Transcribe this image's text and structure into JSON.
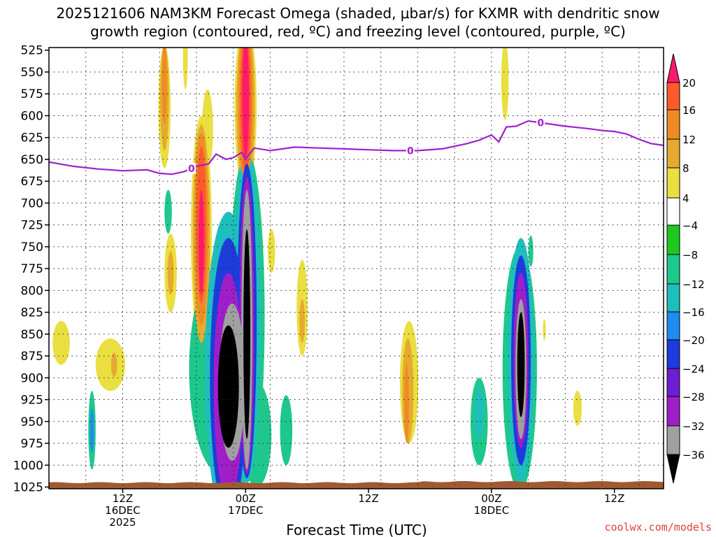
{
  "chart_data": {
    "type": "heatmap",
    "title_line1": "2025121606 NAM3KM Forecast Omega (shaded, μbar/s) for KXMR with dendritic snow",
    "title_line2": "growth region (contoured, red, ºC) and freezing level (contoured, purple, ºC)",
    "xlabel": "Forecast Time (UTC)",
    "ylabel": "",
    "y_axis_ticks": [
      525,
      550,
      575,
      600,
      625,
      650,
      675,
      700,
      725,
      750,
      775,
      800,
      825,
      850,
      875,
      900,
      925,
      950,
      975,
      1000,
      1025
    ],
    "ylim": [
      1027,
      522
    ],
    "xlim_hours": [
      6,
      56
    ],
    "x_ticks": [
      {
        "hour": 12,
        "line1": "12Z",
        "line2": "16DEC",
        "line3": "2025"
      },
      {
        "hour": 22,
        "line1": "00Z",
        "line2": "17DEC",
        "line3": ""
      },
      {
        "hour": 32,
        "line1": "12Z",
        "line2": "",
        "line3": ""
      },
      {
        "hour": 42,
        "line1": "00Z",
        "line2": "18DEC",
        "line3": ""
      },
      {
        "hour": 52,
        "line1": "12Z",
        "line2": "",
        "line3": ""
      }
    ],
    "colorbar": {
      "labels": [
        "20",
        "16",
        "12",
        "8",
        "4",
        "−4",
        "−8",
        "−12",
        "−16",
        "−20",
        "−24",
        "−28",
        "−32",
        "−36"
      ],
      "colors": [
        "#ff1a6e",
        "#ff5a2a",
        "#f08a24",
        "#e6aa30",
        "#eadf40",
        "#ffffff",
        "#1ec81e",
        "#1ec88c",
        "#1ebebe",
        "#1e8cf0",
        "#1e3cdc",
        "#6e1ed2",
        "#a01ec8",
        "#a0a0a0",
        "#000000"
      ]
    },
    "freezing_level": {
      "label": "0",
      "color": "#a020d0",
      "points": [
        [
          6,
          653
        ],
        [
          8,
          658
        ],
        [
          10,
          661
        ],
        [
          12,
          663
        ],
        [
          14,
          662
        ],
        [
          15,
          666
        ],
        [
          16,
          667
        ],
        [
          17,
          664
        ],
        [
          18,
          658
        ],
        [
          19,
          655
        ],
        [
          19.6,
          644
        ],
        [
          20.4,
          650
        ],
        [
          21,
          648
        ],
        [
          21.7,
          642
        ],
        [
          22,
          650
        ],
        [
          22.3,
          644
        ],
        [
          22.7,
          637
        ],
        [
          24,
          640
        ],
        [
          26,
          636
        ],
        [
          28,
          637
        ],
        [
          30,
          638
        ],
        [
          32,
          639
        ],
        [
          34,
          640
        ],
        [
          36,
          640
        ],
        [
          38,
          638
        ],
        [
          40,
          632
        ],
        [
          41,
          628
        ],
        [
          42,
          622
        ],
        [
          42.6,
          630
        ],
        [
          43.2,
          613
        ],
        [
          44,
          612
        ],
        [
          45,
          606
        ],
        [
          46,
          608
        ],
        [
          48,
          612
        ],
        [
          50,
          615
        ],
        [
          51,
          617
        ],
        [
          52,
          618
        ],
        [
          53,
          621
        ],
        [
          54,
          627
        ],
        [
          55,
          632
        ],
        [
          56,
          634
        ]
      ],
      "label_hours": [
        17.6,
        35.4,
        46.0
      ]
    },
    "ground_pressure_hpa": 1020,
    "omega_features": [
      {
        "t": 20.6,
        "tw": 0.85,
        "p": 910,
        "ph": 70,
        "v": -37
      },
      {
        "t": 20.9,
        "tw": 1.05,
        "p": 905,
        "ph": 90,
        "v": -33
      },
      {
        "t": 20.6,
        "tw": 1.2,
        "p": 910,
        "ph": 130,
        "v": -29
      },
      {
        "t": 20.6,
        "tw": 1.5,
        "p": 900,
        "ph": 160,
        "v": -21
      },
      {
        "t": 20.6,
        "tw": 1.9,
        "p": 890,
        "ph": 180,
        "v": -13
      },
      {
        "t": 20.0,
        "tw": 2.6,
        "p": 890,
        "ph": 120,
        "v": -9
      },
      {
        "t": 22.1,
        "tw": 0.28,
        "p": 850,
        "ph": 120,
        "v": -37
      },
      {
        "t": 22.1,
        "tw": 0.45,
        "p": 845,
        "ph": 160,
        "v": -33
      },
      {
        "t": 22.1,
        "tw": 0.6,
        "p": 840,
        "ph": 170,
        "v": -29
      },
      {
        "t": 22.1,
        "tw": 0.8,
        "p": 835,
        "ph": 180,
        "v": -21
      },
      {
        "t": 22.1,
        "tw": 1.1,
        "p": 830,
        "ph": 190,
        "v": -13
      },
      {
        "t": 22.1,
        "tw": 1.45,
        "p": 830,
        "ph": 190,
        "v": -9
      },
      {
        "t": 22.9,
        "tw": 1.2,
        "p": 965,
        "ph": 60,
        "v": -9
      },
      {
        "t": 25.3,
        "tw": 0.5,
        "p": 960,
        "ph": 40,
        "v": -9
      },
      {
        "t": 15.7,
        "tw": 0.3,
        "p": 710,
        "ph": 25,
        "v": -9
      },
      {
        "t": 9.5,
        "tw": 0.3,
        "p": 960,
        "ph": 45,
        "v": -9
      },
      {
        "t": 9.5,
        "tw": 0.16,
        "p": 960,
        "ph": 25,
        "v": -17
      },
      {
        "t": 44.4,
        "tw": 0.3,
        "p": 885,
        "ph": 60,
        "v": -37
      },
      {
        "t": 44.4,
        "tw": 0.45,
        "p": 890,
        "ph": 80,
        "v": -33
      },
      {
        "t": 44.4,
        "tw": 0.6,
        "p": 880,
        "ph": 100,
        "v": -29
      },
      {
        "t": 44.4,
        "tw": 0.8,
        "p": 880,
        "ph": 120,
        "v": -21
      },
      {
        "t": 44.4,
        "tw": 1.05,
        "p": 880,
        "ph": 140,
        "v": -13
      },
      {
        "t": 44.3,
        "tw": 1.4,
        "p": 890,
        "ph": 140,
        "v": -9
      },
      {
        "t": 41.0,
        "tw": 0.7,
        "p": 950,
        "ph": 50,
        "v": -9
      },
      {
        "t": 41.0,
        "tw": 0.35,
        "p": 940,
        "ph": 30,
        "v": -13
      },
      {
        "t": 45.2,
        "tw": 0.2,
        "p": 755,
        "ph": 18,
        "v": -9
      },
      {
        "t": 18.4,
        "tw": 0.22,
        "p": 745,
        "ph": 60,
        "v": 21
      },
      {
        "t": 18.4,
        "tw": 0.4,
        "p": 725,
        "ph": 90,
        "v": 17
      },
      {
        "t": 18.4,
        "tw": 0.55,
        "p": 730,
        "ph": 110,
        "v": 13
      },
      {
        "t": 18.4,
        "tw": 0.7,
        "p": 735,
        "ph": 125,
        "v": 9
      },
      {
        "t": 18.4,
        "tw": 0.85,
        "p": 735,
        "ph": 135,
        "v": 5
      },
      {
        "t": 22.0,
        "tw": 0.28,
        "p": 580,
        "ph": 70,
        "v": 21
      },
      {
        "t": 22.0,
        "tw": 0.45,
        "p": 585,
        "ph": 80,
        "v": 17
      },
      {
        "t": 22.0,
        "tw": 0.6,
        "p": 585,
        "ph": 90,
        "v": 13
      },
      {
        "t": 22.0,
        "tw": 0.75,
        "p": 590,
        "ph": 95,
        "v": 9
      },
      {
        "t": 22.0,
        "tw": 0.9,
        "p": 590,
        "ph": 100,
        "v": 5
      },
      {
        "t": 15.4,
        "tw": 0.2,
        "p": 560,
        "ph": 50,
        "v": 13
      },
      {
        "t": 15.4,
        "tw": 0.35,
        "p": 580,
        "ph": 60,
        "v": 9
      },
      {
        "t": 15.4,
        "tw": 0.5,
        "p": 590,
        "ph": 70,
        "v": 5
      },
      {
        "t": 18.9,
        "tw": 0.45,
        "p": 615,
        "ph": 45,
        "v": 5
      },
      {
        "t": 17.1,
        "tw": 0.2,
        "p": 530,
        "ph": 40,
        "v": 5
      },
      {
        "t": 15.9,
        "tw": 0.25,
        "p": 780,
        "ph": 25,
        "v": 9
      },
      {
        "t": 15.9,
        "tw": 0.5,
        "p": 780,
        "ph": 45,
        "v": 5
      },
      {
        "t": 11.3,
        "tw": 0.25,
        "p": 885,
        "ph": 14,
        "v": 9
      },
      {
        "t": 11.0,
        "tw": 1.2,
        "p": 885,
        "ph": 30,
        "v": 5
      },
      {
        "t": 7.0,
        "tw": 0.7,
        "p": 860,
        "ph": 25,
        "v": 5
      },
      {
        "t": 35.1,
        "tw": 0.18,
        "p": 930,
        "ph": 45,
        "v": 13
      },
      {
        "t": 35.2,
        "tw": 0.45,
        "p": 915,
        "ph": 60,
        "v": 9
      },
      {
        "t": 35.3,
        "tw": 0.75,
        "p": 905,
        "ph": 70,
        "v": 5
      },
      {
        "t": 26.6,
        "tw": 0.22,
        "p": 835,
        "ph": 25,
        "v": 9
      },
      {
        "t": 26.6,
        "tw": 0.45,
        "p": 820,
        "ph": 55,
        "v": 5
      },
      {
        "t": 43.1,
        "tw": 0.3,
        "p": 560,
        "ph": 45,
        "v": 5
      },
      {
        "t": 49.0,
        "tw": 0.35,
        "p": 935,
        "ph": 20,
        "v": 5
      },
      {
        "t": 24.1,
        "tw": 0.3,
        "p": 755,
        "ph": 25,
        "v": 5
      },
      {
        "t": 46.3,
        "tw": 0.12,
        "p": 845,
        "ph": 12,
        "v": 5
      }
    ]
  },
  "credit": "coolwx.com/models"
}
